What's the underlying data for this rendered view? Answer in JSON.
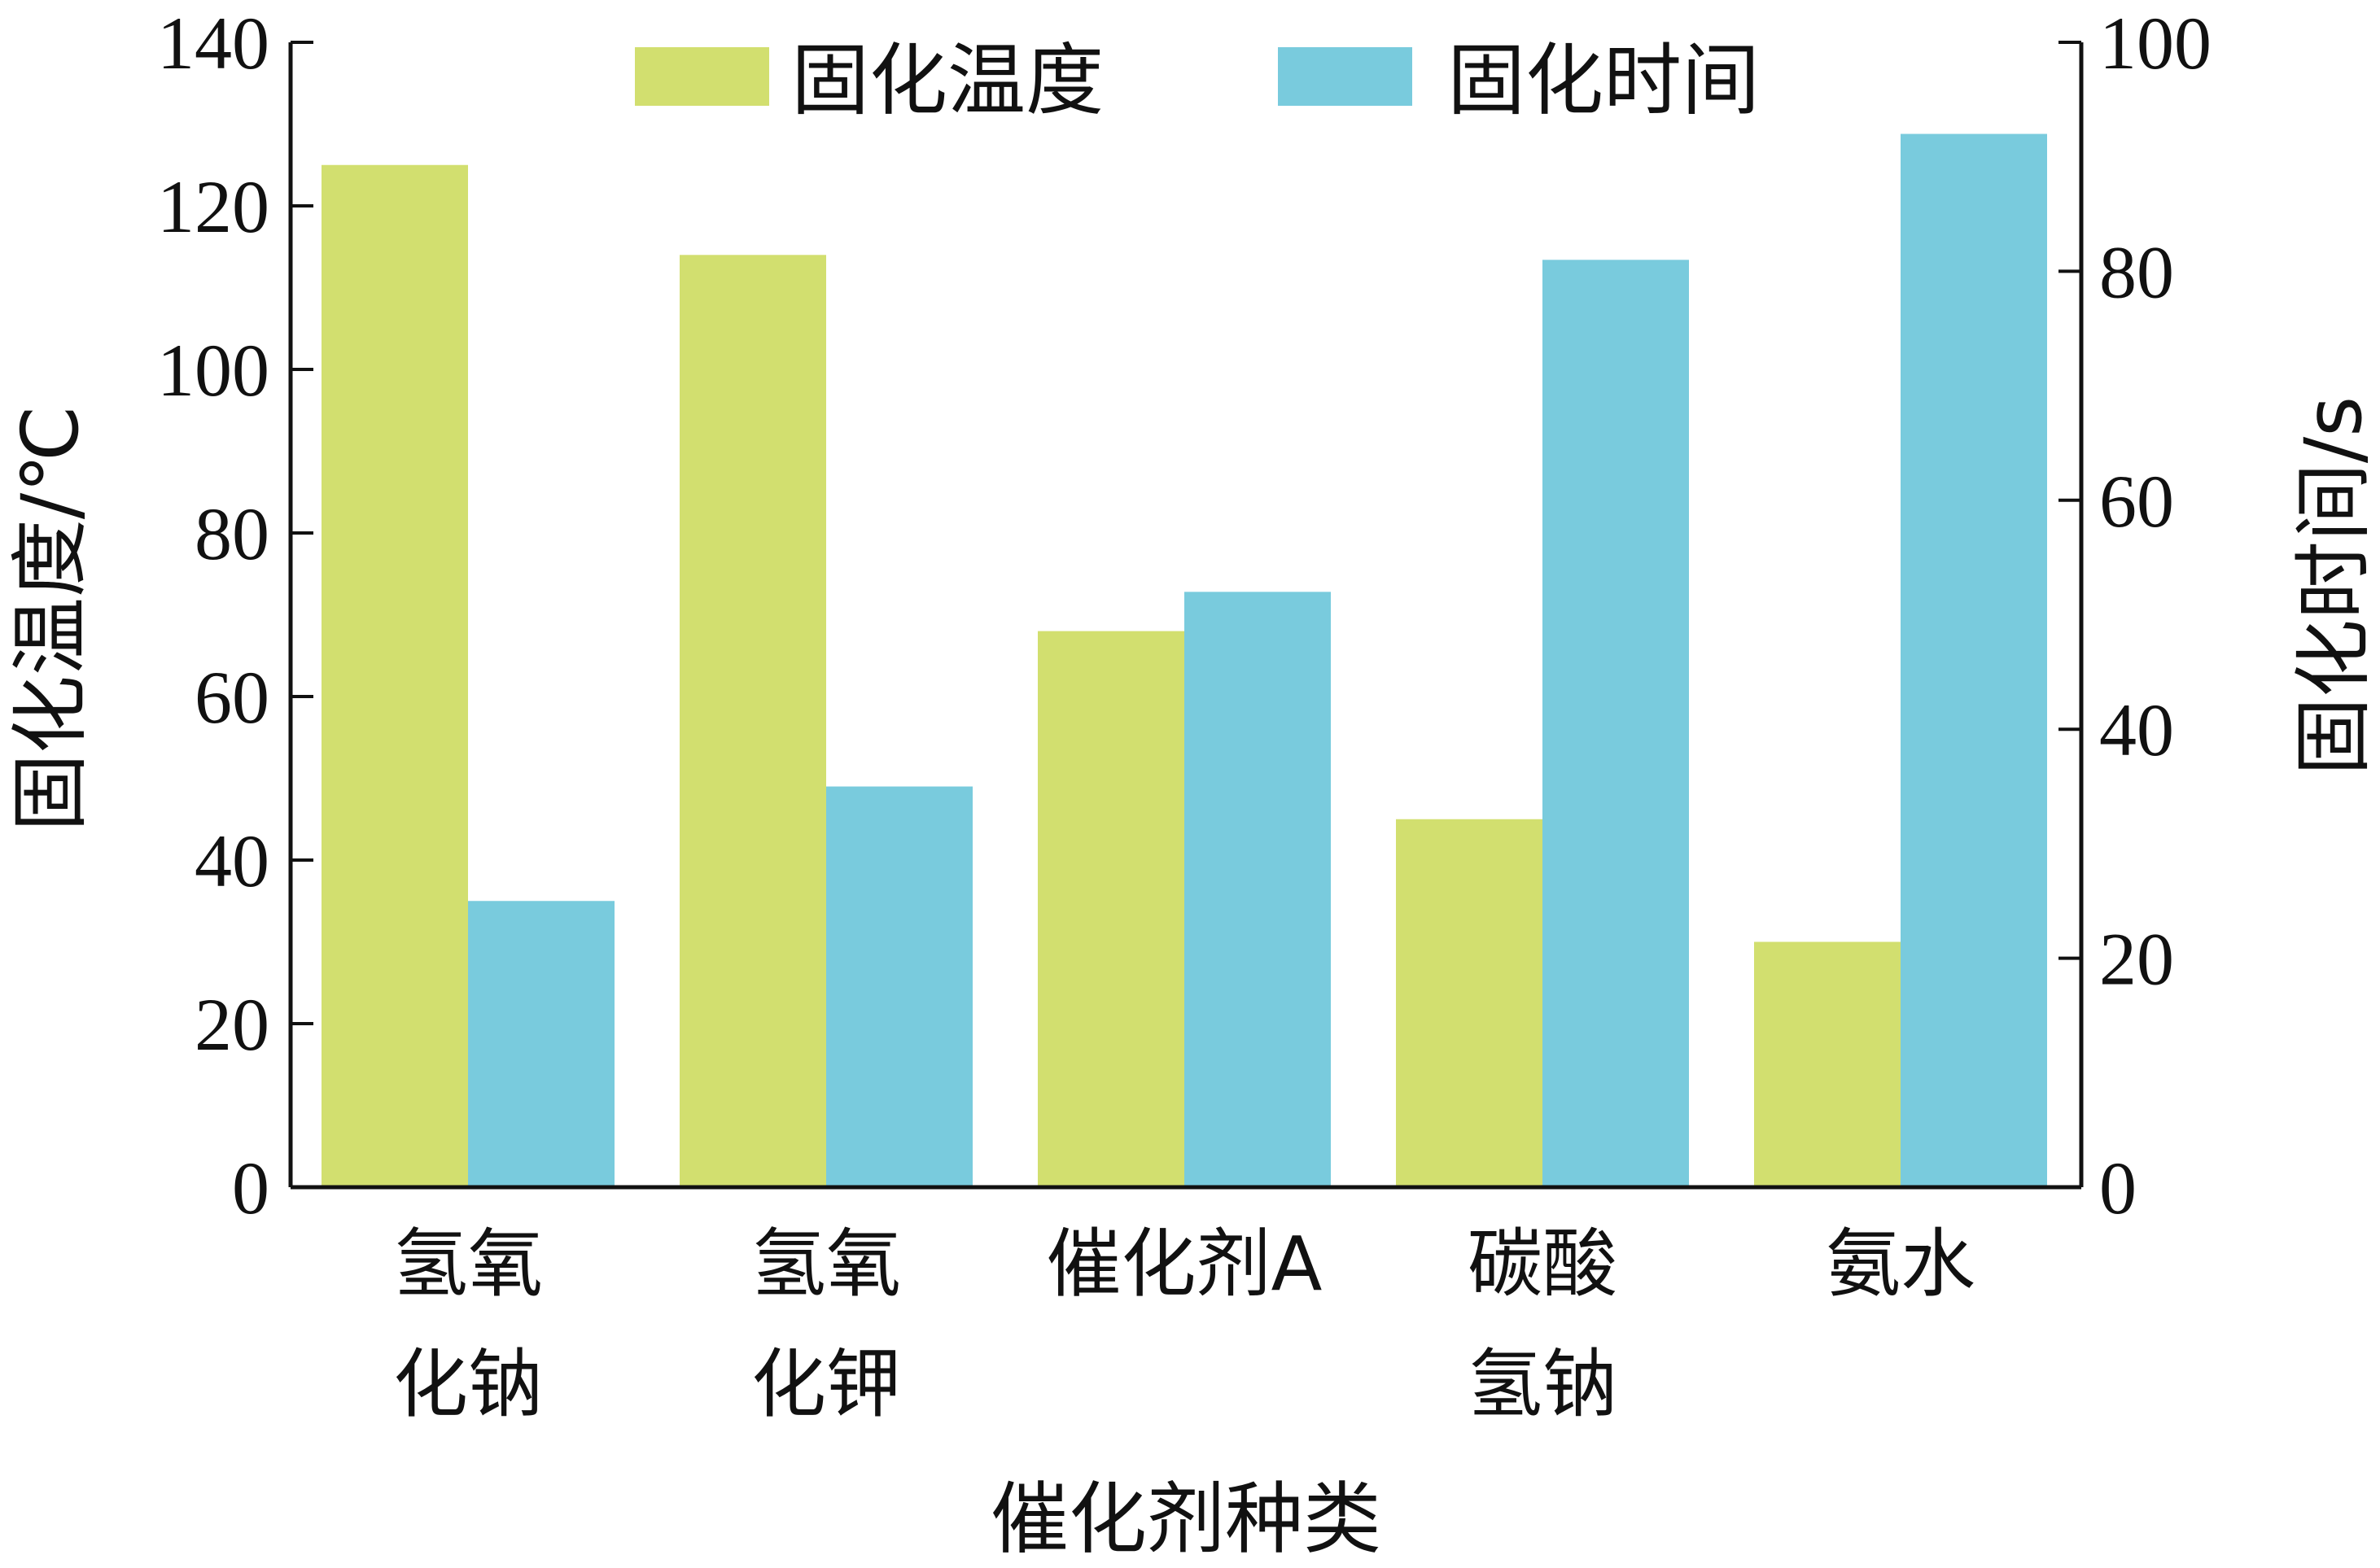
{
  "chart_data": {
    "type": "bar",
    "categories": [
      [
        "氢氧",
        "化钠"
      ],
      [
        "氢氧",
        "化钾"
      ],
      [
        "催化剂A"
      ],
      [
        "碳酸",
        "氢钠"
      ],
      [
        "氨水"
      ]
    ],
    "series": [
      {
        "name": "固化温度",
        "axis": "left",
        "color": "#d2df6f",
        "values": [
          125,
          114,
          68,
          45,
          30
        ]
      },
      {
        "name": "固化时间",
        "axis": "right",
        "color": "#79cbdd",
        "values": [
          25,
          35,
          52,
          81,
          92
        ]
      }
    ],
    "xlabel": "催化剂种类",
    "ylabel_left": "固化温度/℃",
    "ylabel_right": "固化时间/s",
    "ylim_left": [
      0,
      140
    ],
    "yticks_left": [
      0,
      20,
      40,
      60,
      80,
      100,
      120,
      140
    ],
    "ylim_right": [
      0,
      100
    ],
    "yticks_right": [
      0,
      20,
      40,
      60,
      80,
      100
    ],
    "grid": false,
    "legend_position": "top-center"
  }
}
